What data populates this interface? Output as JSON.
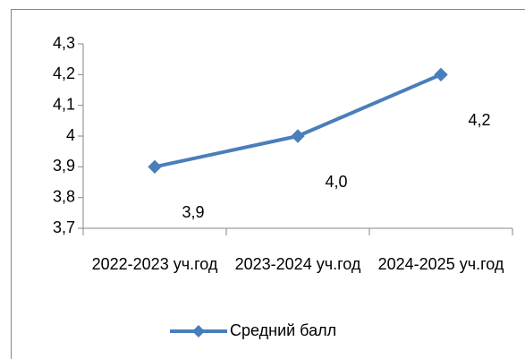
{
  "chart_data": {
    "type": "line",
    "categories": [
      "2022-2023 уч.год",
      "2023-2024 уч.год",
      "2024-2025 уч.год"
    ],
    "series": [
      {
        "name": "Средний балл",
        "color": "#4a7ebb",
        "values": [
          3.9,
          4.0,
          4.2
        ],
        "value_labels": [
          "3,9",
          "4,0",
          "4,2"
        ]
      }
    ],
    "ylim": [
      3.7,
      4.3
    ],
    "yticks": [
      {
        "value": 3.7,
        "label": "3,7"
      },
      {
        "value": 3.8,
        "label": "3,8"
      },
      {
        "value": 3.9,
        "label": "3,9"
      },
      4,
      {
        "value": 4.1,
        "label": "4,1"
      },
      {
        "value": 4.2,
        "label": "4,2"
      },
      {
        "value": 4.3,
        "label": "4,3"
      }
    ],
    "grid": false,
    "legend": "bottom"
  }
}
